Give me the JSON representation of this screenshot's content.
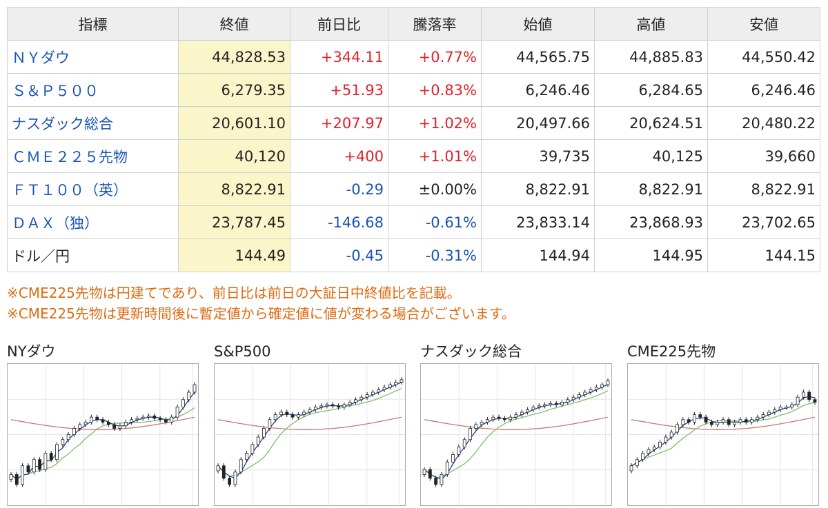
{
  "table": {
    "headers": [
      "指標",
      "終値",
      "前日比",
      "騰落率",
      "始値",
      "高値",
      "安値"
    ],
    "rows": [
      {
        "name": "ＮＹダウ",
        "link": true,
        "close": "44,828.53",
        "change": "+344.11",
        "pct": "+0.77%",
        "open": "44,565.75",
        "high": "44,885.83",
        "low": "44,550.42",
        "dir": "up"
      },
      {
        "name": "Ｓ＆Ｐ５００",
        "link": true,
        "close": "6,279.35",
        "change": "+51.93",
        "pct": "+0.83%",
        "open": "6,246.46",
        "high": "6,284.65",
        "low": "6,246.46",
        "dir": "up"
      },
      {
        "name": "ナスダック総合",
        "link": true,
        "close": "20,601.10",
        "change": "+207.97",
        "pct": "+1.02%",
        "open": "20,497.66",
        "high": "20,624.51",
        "low": "20,480.22",
        "dir": "up"
      },
      {
        "name": "ＣＭＥ２２５先物",
        "link": true,
        "close": "40,120",
        "change": "+400",
        "pct": "+1.01%",
        "open": "39,735",
        "high": "40,125",
        "low": "39,660",
        "dir": "up"
      },
      {
        "name": "ＦＴ１００（英）",
        "link": true,
        "close": "8,822.91",
        "change": "-0.29",
        "pct": "±0.00%",
        "open": "8,822.91",
        "high": "8,822.91",
        "low": "8,822.91",
        "dir": "down",
        "pct_dir": "flat"
      },
      {
        "name": "ＤＡＸ（独）",
        "link": true,
        "close": "23,787.45",
        "change": "-146.68",
        "pct": "-0.61%",
        "open": "23,833.14",
        "high": "23,868.93",
        "low": "23,702.65",
        "dir": "down"
      },
      {
        "name": "ドル／円",
        "link": false,
        "close": "144.49",
        "change": "-0.45",
        "pct": "-0.31%",
        "open": "144.94",
        "high": "144.95",
        "low": "144.15",
        "dir": "down"
      }
    ]
  },
  "notes": [
    "※CME225先物は円建てであり、前日比は前日の大証日中終値比を記載。",
    "※CME225先物は更新時間後に暫定値から確定値に値が変わる場合がございます。"
  ],
  "colors": {
    "up": "#e0202a",
    "down": "#1a55b6",
    "link": "#1a55b6",
    "close_highlight": "#fbf6c9",
    "note": "#e06a10",
    "ma_short": "#1f3f8f",
    "ma_mid": "#7cbf6a",
    "ma_long": "#c97a7a"
  },
  "charts": [
    {
      "title": "NYダウ",
      "closes": [
        0.18,
        0.1,
        0.25,
        0.2,
        0.3,
        0.22,
        0.35,
        0.3,
        0.42,
        0.46,
        0.5,
        0.55,
        0.58,
        0.6,
        0.64,
        0.62,
        0.6,
        0.58,
        0.55,
        0.57,
        0.6,
        0.62,
        0.63,
        0.64,
        0.65,
        0.63,
        0.62,
        0.6,
        0.64,
        0.72,
        0.78,
        0.84,
        0.9
      ]
    },
    {
      "title": "S&P500",
      "closes": [
        0.25,
        0.15,
        0.1,
        0.2,
        0.3,
        0.35,
        0.42,
        0.48,
        0.55,
        0.62,
        0.66,
        0.68,
        0.66,
        0.64,
        0.66,
        0.68,
        0.7,
        0.72,
        0.73,
        0.74,
        0.73,
        0.72,
        0.74,
        0.76,
        0.78,
        0.8,
        0.82,
        0.84,
        0.86,
        0.88,
        0.9,
        0.92,
        0.94
      ]
    },
    {
      "title": "ナスダック総合",
      "closes": [
        0.22,
        0.15,
        0.1,
        0.18,
        0.28,
        0.34,
        0.4,
        0.46,
        0.55,
        0.58,
        0.6,
        0.62,
        0.64,
        0.63,
        0.62,
        0.64,
        0.66,
        0.68,
        0.7,
        0.72,
        0.73,
        0.74,
        0.75,
        0.74,
        0.76,
        0.78,
        0.8,
        0.82,
        0.84,
        0.86,
        0.88,
        0.9,
        0.93
      ]
    },
    {
      "title": "CME225先物",
      "closes": [
        0.25,
        0.3,
        0.35,
        0.38,
        0.4,
        0.44,
        0.48,
        0.52,
        0.58,
        0.62,
        0.6,
        0.66,
        0.64,
        0.6,
        0.58,
        0.6,
        0.62,
        0.58,
        0.6,
        0.62,
        0.6,
        0.62,
        0.64,
        0.66,
        0.68,
        0.7,
        0.72,
        0.72,
        0.74,
        0.8,
        0.84,
        0.78,
        0.76
      ]
    }
  ]
}
